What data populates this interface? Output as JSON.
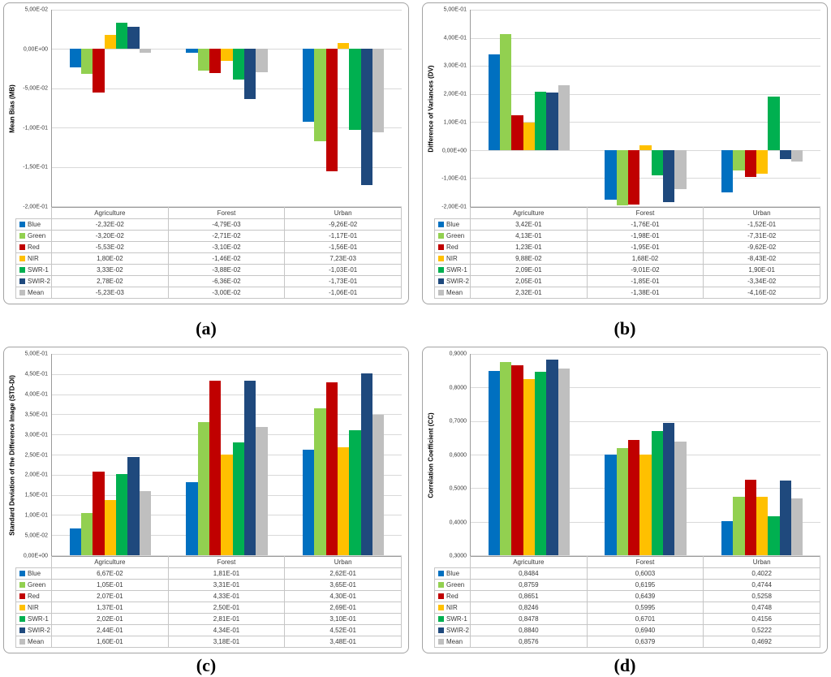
{
  "figure": {
    "captions": {
      "a": "(a)",
      "b": "(b)",
      "c": "(c)",
      "d": "(d)"
    }
  },
  "chart_data": [
    {
      "type": "bar",
      "panel": "a",
      "caption": "(a)",
      "ylabel": "Mean Bias (MB)",
      "ylim": [
        -0.2,
        0.05
      ],
      "grid": true,
      "legend_position": "table-left",
      "yticks": [
        "5,00E-02",
        "0,00E+00",
        "-5,00E-02",
        "-1,00E-01",
        "-1,50E-01",
        "-2,00E-01"
      ],
      "categories": [
        "Agriculture",
        "Forest",
        "Urban"
      ],
      "series": [
        {
          "name": "Blue",
          "color": "#0070C0",
          "values": [
            "-2,32E-02",
            "-4,79E-03",
            "-9,26E-02"
          ]
        },
        {
          "name": "Green",
          "color": "#92D050",
          "values": [
            "-3,20E-02",
            "-2,71E-02",
            "-1,17E-01"
          ]
        },
        {
          "name": "Red",
          "color": "#C00000",
          "values": [
            "-5,53E-02",
            "-3,10E-02",
            "-1,56E-01"
          ]
        },
        {
          "name": "NIR",
          "color": "#FFC000",
          "values": [
            "1,80E-02",
            "-1,46E-02",
            "7,23E-03"
          ]
        },
        {
          "name": "SWR-1",
          "color": "#00B050",
          "values": [
            "3,33E-02",
            "-3,88E-02",
            "-1,03E-01"
          ]
        },
        {
          "name": "SWIR-2",
          "color": "#1F497D",
          "values": [
            "2,78E-02",
            "-6,36E-02",
            "-1,73E-01"
          ]
        },
        {
          "name": "Mean",
          "color": "#BFBFBF",
          "values": [
            "-5,23E-03",
            "-3,00E-02",
            "-1,06E-01"
          ]
        }
      ]
    },
    {
      "type": "bar",
      "panel": "b",
      "caption": "(b)",
      "ylabel": "Difference of Variances (DV)",
      "ylim": [
        -0.2,
        0.5
      ],
      "grid": true,
      "legend_position": "table-left",
      "yticks": [
        "5,00E-01",
        "4,00E-01",
        "3,00E-01",
        "2,00E-01",
        "1,00E-01",
        "0,00E+00",
        "-1,00E-01",
        "-2,00E-01"
      ],
      "categories": [
        "Agriculture",
        "Forest",
        "Urban"
      ],
      "series": [
        {
          "name": "Blue",
          "color": "#0070C0",
          "values": [
            "3,42E-01",
            "-1,76E-01",
            "-1,52E-01"
          ]
        },
        {
          "name": "Green",
          "color": "#92D050",
          "values": [
            "4,13E-01",
            "-1,98E-01",
            "-7,31E-02"
          ]
        },
        {
          "name": "Red",
          "color": "#C00000",
          "values": [
            "1,23E-01",
            "-1,95E-01",
            "-9,62E-02"
          ]
        },
        {
          "name": "NIR",
          "color": "#FFC000",
          "values": [
            "9,88E-02",
            "1,68E-02",
            "-8,43E-02"
          ]
        },
        {
          "name": "SWR-1",
          "color": "#00B050",
          "values": [
            "2,09E-01",
            "-9,01E-02",
            "1,90E-01"
          ]
        },
        {
          "name": "SWIR-2",
          "color": "#1F497D",
          "values": [
            "2,05E-01",
            "-1,85E-01",
            "-3,34E-02"
          ]
        },
        {
          "name": "Mean",
          "color": "#BFBFBF",
          "values": [
            "2,32E-01",
            "-1,38E-01",
            "-4,16E-02"
          ]
        }
      ]
    },
    {
      "type": "bar",
      "panel": "c",
      "caption": "(c)",
      "ylabel": "Standard Deviation of the Difference Image (STD-DI)",
      "ylim": [
        0,
        0.5
      ],
      "grid": true,
      "legend_position": "table-left",
      "yticks": [
        "5,00E-01",
        "4,50E-01",
        "4,00E-01",
        "3,50E-01",
        "3,00E-01",
        "2,50E-01",
        "2,00E-01",
        "1,50E-01",
        "1,00E-01",
        "5,00E-02",
        "0,00E+00"
      ],
      "categories": [
        "Agriculture",
        "Forest",
        "Urban"
      ],
      "series": [
        {
          "name": "Blue",
          "color": "#0070C0",
          "values": [
            "6,67E-02",
            "1,81E-01",
            "2,62E-01"
          ]
        },
        {
          "name": "Green",
          "color": "#92D050",
          "values": [
            "1,05E-01",
            "3,31E-01",
            "3,65E-01"
          ]
        },
        {
          "name": "Red",
          "color": "#C00000",
          "values": [
            "2,07E-01",
            "4,33E-01",
            "4,30E-01"
          ]
        },
        {
          "name": "NIR",
          "color": "#FFC000",
          "values": [
            "1,37E-01",
            "2,50E-01",
            "2,69E-01"
          ]
        },
        {
          "name": "SWR-1",
          "color": "#00B050",
          "values": [
            "2,02E-01",
            "2,81E-01",
            "3,10E-01"
          ]
        },
        {
          "name": "SWIR-2",
          "color": "#1F497D",
          "values": [
            "2,44E-01",
            "4,34E-01",
            "4,52E-01"
          ]
        },
        {
          "name": "Mean",
          "color": "#BFBFBF",
          "values": [
            "1,60E-01",
            "3,18E-01",
            "3,48E-01"
          ]
        }
      ]
    },
    {
      "type": "bar",
      "panel": "d",
      "caption": "(d)",
      "ylabel": "Correlation Coefficient (CC)",
      "ylim": [
        0.3,
        0.9
      ],
      "grid": true,
      "legend_position": "table-left",
      "yticks": [
        "0,9000",
        "0,8000",
        "0,7000",
        "0,6000",
        "0,5000",
        "0,4000",
        "0,3000"
      ],
      "categories": [
        "Agriculture",
        "Forest",
        "Urban"
      ],
      "series": [
        {
          "name": "Blue",
          "color": "#0070C0",
          "values": [
            "0,8484",
            "0,6003",
            "0,4022"
          ]
        },
        {
          "name": "Green",
          "color": "#92D050",
          "values": [
            "0,8759",
            "0,6195",
            "0,4744"
          ]
        },
        {
          "name": "Red",
          "color": "#C00000",
          "values": [
            "0,8651",
            "0,6439",
            "0,5258"
          ]
        },
        {
          "name": "NIR",
          "color": "#FFC000",
          "values": [
            "0,8246",
            "0,5995",
            "0,4748"
          ]
        },
        {
          "name": "SWR-1",
          "color": "#00B050",
          "values": [
            "0,8478",
            "0,6701",
            "0,4156"
          ]
        },
        {
          "name": "SWIR-2",
          "color": "#1F497D",
          "values": [
            "0,8840",
            "0,6940",
            "0,5222"
          ]
        },
        {
          "name": "Mean",
          "color": "#BFBFBF",
          "values": [
            "0,8576",
            "0,6379",
            "0,4692"
          ]
        }
      ]
    }
  ]
}
